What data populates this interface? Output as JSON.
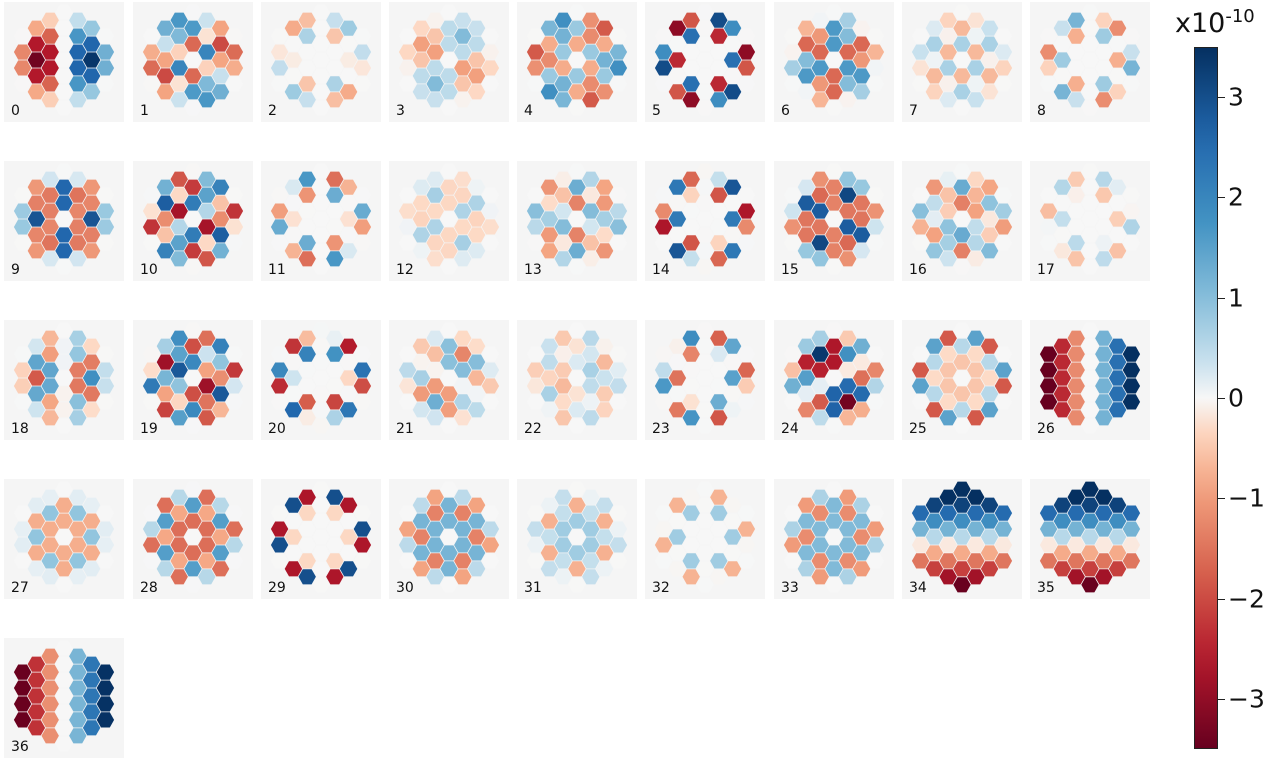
{
  "chart_data": {
    "type": "heatmap",
    "description_kind": "small-multiples hexagonal segment maps",
    "panel_labels": [
      "0",
      "1",
      "2",
      "3",
      "4",
      "5",
      "6",
      "7",
      "8",
      "9",
      "10",
      "11",
      "12",
      "13",
      "14",
      "15",
      "16",
      "17",
      "18",
      "19",
      "20",
      "21",
      "22",
      "23",
      "24",
      "25",
      "26",
      "27",
      "28",
      "29",
      "30",
      "31",
      "32",
      "33",
      "34",
      "35",
      "36"
    ],
    "colorbar": {
      "colormap": "RdBu",
      "vmin": -3.5,
      "vmax": 3.5,
      "ticks": [
        3,
        2,
        1,
        0,
        -1,
        -2,
        -3
      ],
      "tick_labels": [
        "3",
        "2",
        "1",
        "0",
        "−1",
        "−2",
        "−3"
      ],
      "exponent_base": "x10",
      "exponent_power": "-10"
    },
    "colors": {
      "panel_background": "#f5f5f5",
      "positive_max": "#053061",
      "zero": "#f7f7f7",
      "negative_max": "#67001f"
    }
  }
}
